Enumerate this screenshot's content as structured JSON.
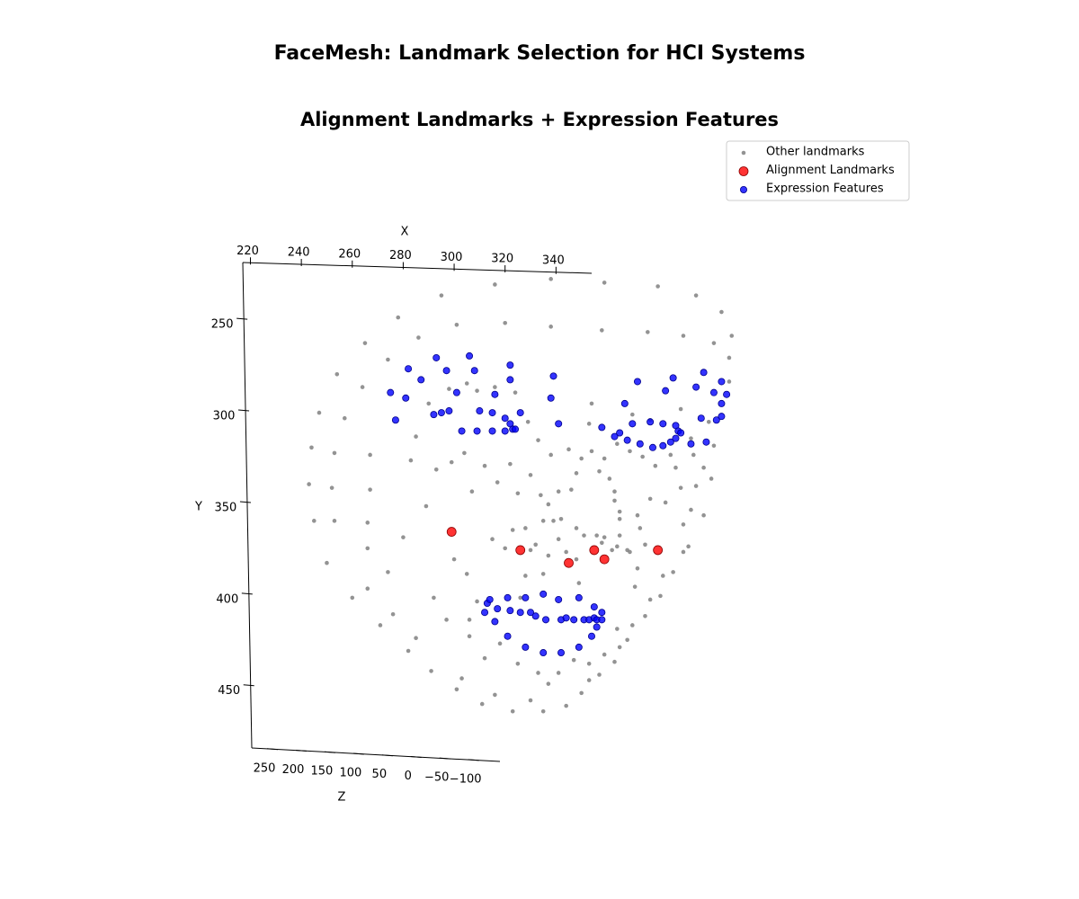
{
  "chart_data": {
    "type": "scatter3d",
    "title": "FaceMesh: Landmark Selection for HCI Systems",
    "subtitle": "Alignment Landmarks + Expression Features",
    "xlabel": "X",
    "ylabel": "Y",
    "zlabel": "Z",
    "xlim": [
      217,
      354
    ],
    "ylim": [
      219,
      484
    ],
    "zlim": [
      272,
      -160
    ],
    "xticks": [
      220,
      240,
      260,
      280,
      300,
      320,
      340
    ],
    "yticks": [
      250,
      300,
      350,
      400,
      450
    ],
    "zticks": [
      250,
      200,
      150,
      100,
      50,
      0,
      {
        "value": -50,
        "label": "−50"
      },
      {
        "value": -100,
        "label": "−100"
      }
    ],
    "y_inverted": true,
    "legend": "upper right",
    "series": [
      {
        "name": "Other landmarks",
        "color": "#808080",
        "x": [
          295,
          316,
          338,
          359,
          380,
          395,
          405,
          409,
          408,
          408,
          402,
          390,
          376,
          358,
          338,
          320,
          301,
          286,
          278,
          265,
          254,
          264,
          274,
          247,
          257,
          244,
          253,
          267,
          243,
          252,
          267,
          245,
          253,
          266,
          250,
          266,
          260,
          266,
          271,
          274,
          280,
          276,
          282,
          285,
          291,
          301,
          303,
          311,
          316,
          323,
          330,
          335,
          337,
          344,
          350,
          353,
          357,
          363,
          365,
          368,
          370,
          375,
          377,
          381,
          382,
          386,
          390,
          392,
          390,
          393,
          398,
          395,
          401,
          398,
          402,
          394,
          387,
          389,
          383,
          377,
          372,
          373,
          375,
          368,
          365,
          365,
          363,
          363,
          361,
          357,
          359,
          354,
          350,
          348,
          346,
          341,
          339,
          337,
          334,
          330,
          325,
          322,
          317,
          312,
          307,
          304,
          299,
          293,
          289,
          283,
          285,
          290,
          298,
          305,
          309,
          316,
          324,
          329,
          333,
          338,
          345,
          353,
          354,
          364,
          369,
          374,
          379,
          385,
          389,
          393,
          400,
          377,
          370,
          330,
          332,
          335,
          337,
          341,
          344,
          348,
          351,
          359,
          365,
          369,
          364,
          362,
          358,
          356,
          348,
          342,
          335,
          328,
          323,
          326,
          306,
          297,
          292,
          309,
          306,
          312,
          318,
          325,
          333,
          341,
          347,
          353,
          359,
          364,
          371,
          372,
          349,
          328,
          320,
          315,
          305,
          300
        ],
        "y": [
          237,
          231,
          228,
          230,
          232,
          237,
          246,
          259,
          271,
          284,
          263,
          259,
          257,
          256,
          254,
          252,
          253,
          260,
          249,
          263,
          280,
          287,
          272,
          301,
          304,
          320,
          323,
          324,
          340,
          342,
          343,
          360,
          360,
          361,
          383,
          375,
          402,
          397,
          417,
          388,
          369,
          411,
          431,
          424,
          442,
          452,
          446,
          460,
          455,
          464,
          458,
          464,
          449,
          461,
          454,
          447,
          444,
          437,
          429,
          425,
          417,
          412,
          403,
          401,
          390,
          388,
          377,
          374,
          362,
          354,
          357,
          341,
          337,
          331,
          319,
          324,
          331,
          342,
          350,
          348,
          357,
          364,
          373,
          376,
          359,
          355,
          349,
          344,
          337,
          333,
          326,
          322,
          326,
          334,
          343,
          344,
          360,
          351,
          346,
          335,
          345,
          329,
          339,
          330,
          344,
          323,
          328,
          332,
          352,
          327,
          314,
          296,
          288,
          285,
          289,
          287,
          290,
          306,
          316,
          324,
          321,
          307,
          296,
          318,
          322,
          325,
          330,
          324,
          299,
          315,
          306,
          305,
          302,
          376,
          373,
          389,
          379,
          370,
          377,
          381,
          368,
          369,
          368,
          377,
          374,
          376,
          372,
          368,
          364,
          359,
          360,
          364,
          365,
          402,
          414,
          414,
          402,
          404,
          423,
          435,
          427,
          438,
          443,
          443,
          436,
          438,
          433,
          419,
          396,
          386,
          394,
          390,
          375,
          370,
          389,
          381
        ]
      },
      {
        "name": "Alignment Landmarks",
        "color": "#ff0000",
        "edgecolor": "#8b0000",
        "x": [
          299,
          326,
          345,
          355,
          359,
          380
        ],
        "y": [
          366,
          376,
          383,
          376,
          381,
          376
        ]
      },
      {
        "name": "Expression Features",
        "color": "#0000ff",
        "edgecolor": "#00008b",
        "x": [
          275,
          277,
          282,
          281,
          287,
          293,
          292,
          295,
          297,
          298,
          301,
          303,
          306,
          308,
          309,
          310,
          315,
          315,
          316,
          320,
          320,
          322,
          322,
          322,
          323,
          324,
          326,
          339,
          338,
          341,
          358,
          363,
          365,
          367,
          368,
          370,
          372,
          373,
          377,
          378,
          382,
          382,
          383,
          385,
          386,
          387,
          387,
          388,
          389,
          393,
          395,
          397,
          398,
          399,
          402,
          403,
          405,
          405,
          405,
          407,
          313,
          314,
          312,
          317,
          316,
          321,
          322,
          321,
          326,
          328,
          328,
          330,
          332,
          335,
          335,
          336,
          341,
          342,
          342,
          344,
          347,
          349,
          349,
          351,
          353,
          355,
          355,
          354,
          356,
          358,
          358,
          356
        ],
        "y": [
          290,
          305,
          277,
          293,
          283,
          271,
          302,
          301,
          278,
          300,
          290,
          311,
          270,
          278,
          311,
          300,
          301,
          311,
          291,
          304,
          311,
          275,
          283,
          307,
          310,
          310,
          301,
          281,
          293,
          307,
          309,
          314,
          312,
          296,
          316,
          307,
          284,
          318,
          306,
          320,
          307,
          319,
          289,
          317,
          282,
          308,
          315,
          311,
          312,
          318,
          287,
          304,
          279,
          317,
          290,
          305,
          284,
          296,
          303,
          291,
          405,
          403,
          410,
          408,
          415,
          402,
          409,
          423,
          410,
          402,
          429,
          410,
          412,
          400,
          432,
          414,
          403,
          414,
          432,
          413,
          414,
          402,
          429,
          414,
          414,
          407,
          413,
          423,
          414,
          410,
          414,
          418
        ]
      }
    ]
  }
}
